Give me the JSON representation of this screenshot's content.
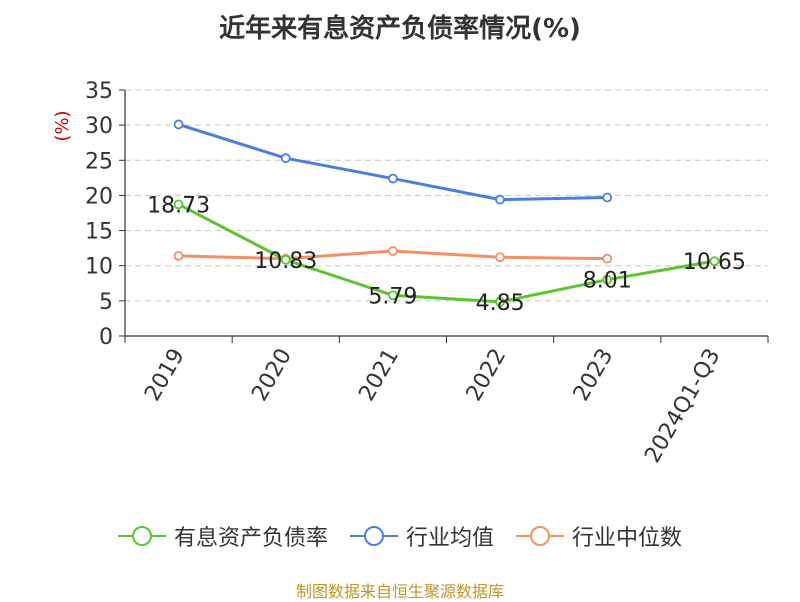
{
  "title": "近年来有息资产负债率情况(%)",
  "source": "制图数据来自恒生聚源数据库",
  "chart_data": {
    "type": "line",
    "title": "近年来有息资产负债率情况(%)",
    "ylabel": "(%)",
    "ylim": [
      0,
      35
    ],
    "yticks": [
      0,
      5,
      10,
      15,
      20,
      25,
      30,
      35
    ],
    "categories": [
      "2019",
      "2020",
      "2021",
      "2022",
      "2023",
      "2024Q1-Q3"
    ],
    "grid": true,
    "legend_position": "bottom",
    "series": [
      {
        "name": "有息资产负债率",
        "color": "#5ac52e",
        "values": [
          18.73,
          10.83,
          5.79,
          4.85,
          8.01,
          10.65
        ],
        "labels": [
          "18.73",
          "10.83",
          "5.79",
          "4.85",
          "8.01",
          "10.65"
        ]
      },
      {
        "name": "行业均值",
        "color": "#4a7fde",
        "values": [
          30.1,
          25.3,
          22.4,
          19.4,
          19.7,
          null
        ]
      },
      {
        "name": "行业中位数",
        "color": "#f59062",
        "values": [
          11.4,
          11.0,
          12.1,
          11.2,
          11.0,
          null
        ]
      }
    ]
  }
}
